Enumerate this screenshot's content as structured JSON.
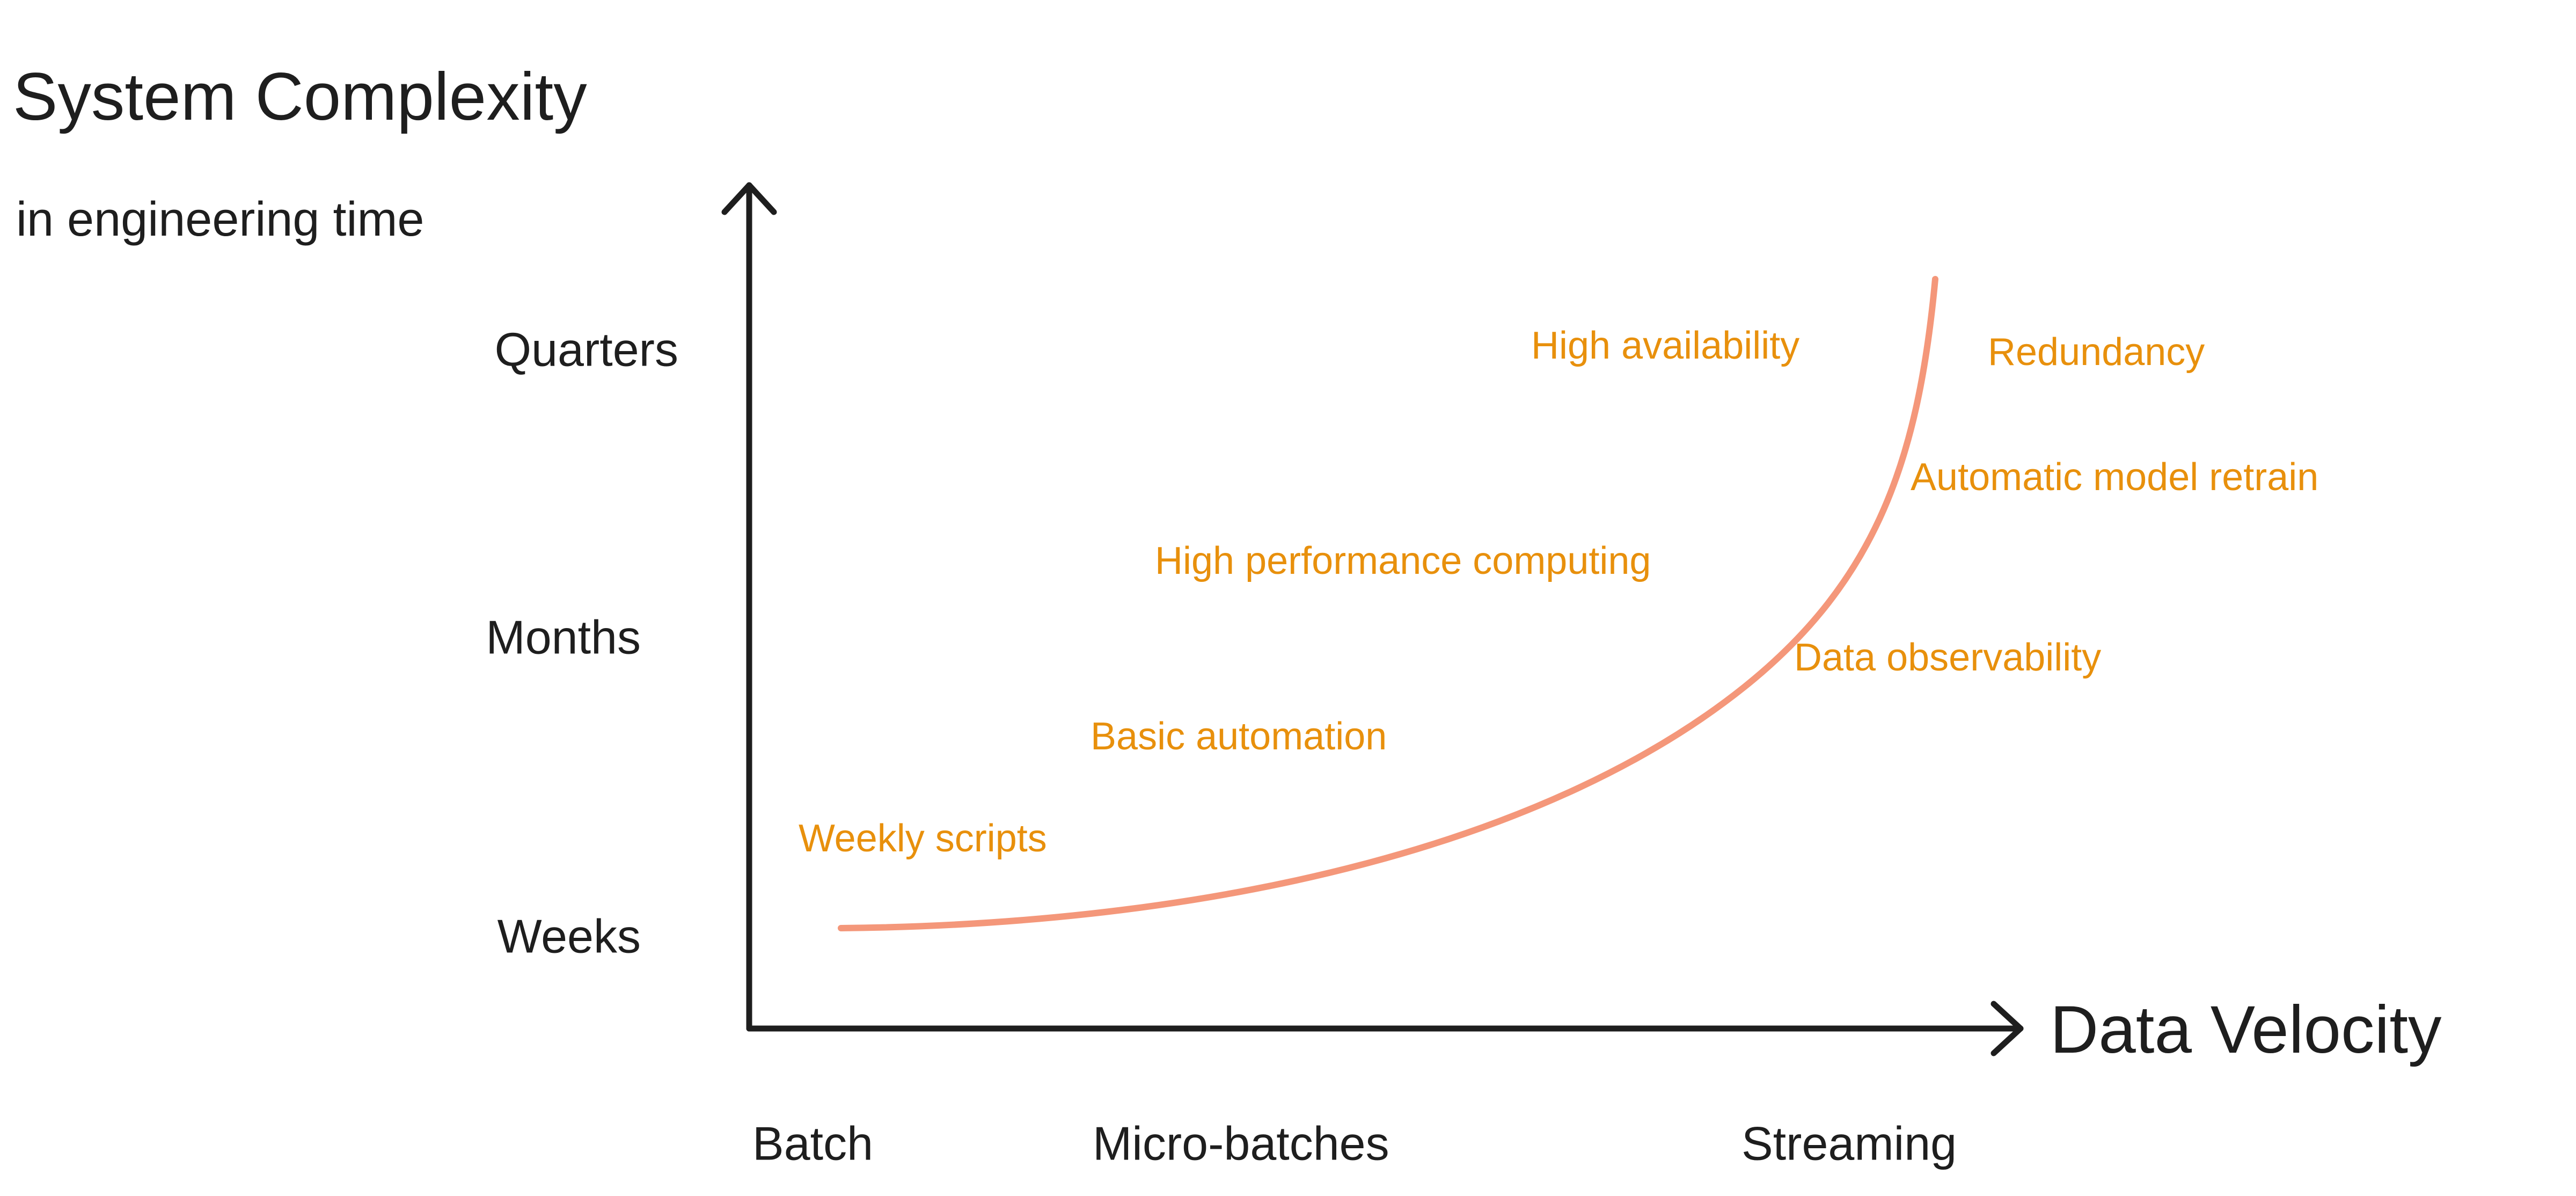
{
  "y_axis": {
    "title": "System Complexity",
    "subtitle": "in engineering time",
    "levels": [
      "Quarters",
      "Months",
      "Weeks"
    ]
  },
  "x_axis": {
    "title": "Data Velocity",
    "levels": [
      "Batch",
      "Micro-batches",
      "Streaming"
    ]
  },
  "annotations": [
    "Weekly scripts",
    "Basic automation",
    "High performance computing",
    "High availability",
    "Redundancy",
    "Automatic model retrain",
    "Data observability"
  ]
}
